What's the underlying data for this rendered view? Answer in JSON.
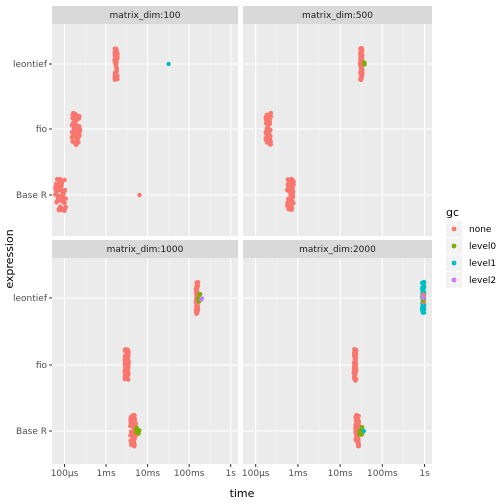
{
  "chart_data": {
    "type": "scatter",
    "title": "",
    "xlabel": "time",
    "ylabel": "expression",
    "x_scale": "log10",
    "x_unit": "seconds",
    "xlim": [
      5e-05,
      1.5
    ],
    "x_ticks": [
      {
        "value": 0.0001,
        "label": "100µs"
      },
      {
        "value": 0.001,
        "label": "1ms"
      },
      {
        "value": 0.01,
        "label": "10ms"
      },
      {
        "value": 0.1,
        "label": "100ms"
      },
      {
        "value": 1,
        "label": "1s"
      }
    ],
    "y_categories": [
      "Base R",
      "fio",
      "leontief"
    ],
    "grid": true,
    "legend": {
      "title": "gc",
      "position": "right",
      "entries": [
        {
          "name": "none",
          "color": "#F8766D"
        },
        {
          "name": "level0",
          "color": "#7CAE00"
        },
        {
          "name": "level1",
          "color": "#00BFC4"
        },
        {
          "name": "level2",
          "color": "#C77CFF"
        }
      ]
    },
    "facets": [
      {
        "strip": "matrix_dim:100",
        "groups": [
          {
            "expression": "leontief",
            "gc": "none",
            "time_min": 0.0016,
            "time_max": 0.0019,
            "n": 60
          },
          {
            "expression": "leontief",
            "gc": "level1",
            "time_min": 0.032,
            "time_max": 0.032,
            "n": 1
          },
          {
            "expression": "fio",
            "gc": "none",
            "time_min": 0.00015,
            "time_max": 0.00024,
            "n": 60
          },
          {
            "expression": "Base R",
            "gc": "none",
            "time_min": 6e-05,
            "time_max": 0.00011,
            "n": 60
          },
          {
            "expression": "Base R",
            "gc": "none",
            "time_min": 0.0064,
            "time_max": 0.0064,
            "n": 1
          }
        ]
      },
      {
        "strip": "matrix_dim:500",
        "groups": [
          {
            "expression": "leontief",
            "gc": "none",
            "time_min": 0.03,
            "time_max": 0.034,
            "n": 60
          },
          {
            "expression": "leontief",
            "gc": "level0",
            "time_min": 0.036,
            "time_max": 0.038,
            "n": 3
          },
          {
            "expression": "fio",
            "gc": "none",
            "time_min": 0.00017,
            "time_max": 0.00023,
            "n": 60
          },
          {
            "expression": "Base R",
            "gc": "none",
            "time_min": 0.00055,
            "time_max": 0.0008,
            "n": 60
          }
        ]
      },
      {
        "strip": "matrix_dim:1000",
        "groups": [
          {
            "expression": "leontief",
            "gc": "none",
            "time_min": 0.145,
            "time_max": 0.165,
            "n": 50
          },
          {
            "expression": "leontief",
            "gc": "level0",
            "time_min": 0.165,
            "time_max": 0.185,
            "n": 4
          },
          {
            "expression": "leontief",
            "gc": "level2",
            "time_min": 0.195,
            "time_max": 0.205,
            "n": 3
          },
          {
            "expression": "fio",
            "gc": "none",
            "time_min": 0.0028,
            "time_max": 0.0035,
            "n": 60
          },
          {
            "expression": "Base R",
            "gc": "none",
            "time_min": 0.0038,
            "time_max": 0.0052,
            "n": 60
          },
          {
            "expression": "Base R",
            "gc": "level0",
            "time_min": 0.0052,
            "time_max": 0.0065,
            "n": 6
          }
        ]
      },
      {
        "strip": "matrix_dim:2000",
        "groups": [
          {
            "expression": "leontief",
            "gc": "level1",
            "time_min": 0.88,
            "time_max": 0.98,
            "n": 60
          },
          {
            "expression": "leontief",
            "gc": "none",
            "time_min": 0.92,
            "time_max": 0.97,
            "n": 20
          },
          {
            "expression": "leontief",
            "gc": "level0",
            "time_min": 0.9,
            "time_max": 0.96,
            "n": 4
          },
          {
            "expression": "leontief",
            "gc": "level2",
            "time_min": 0.92,
            "time_max": 0.95,
            "n": 2
          },
          {
            "expression": "fio",
            "gc": "none",
            "time_min": 0.021,
            "time_max": 0.024,
            "n": 60
          },
          {
            "expression": "Base R",
            "gc": "none",
            "time_min": 0.023,
            "time_max": 0.028,
            "n": 60
          },
          {
            "expression": "Base R",
            "gc": "level0",
            "time_min": 0.028,
            "time_max": 0.034,
            "n": 8
          },
          {
            "expression": "Base R",
            "gc": "level1",
            "time_min": 0.036,
            "time_max": 0.037,
            "n": 1
          }
        ]
      }
    ]
  }
}
